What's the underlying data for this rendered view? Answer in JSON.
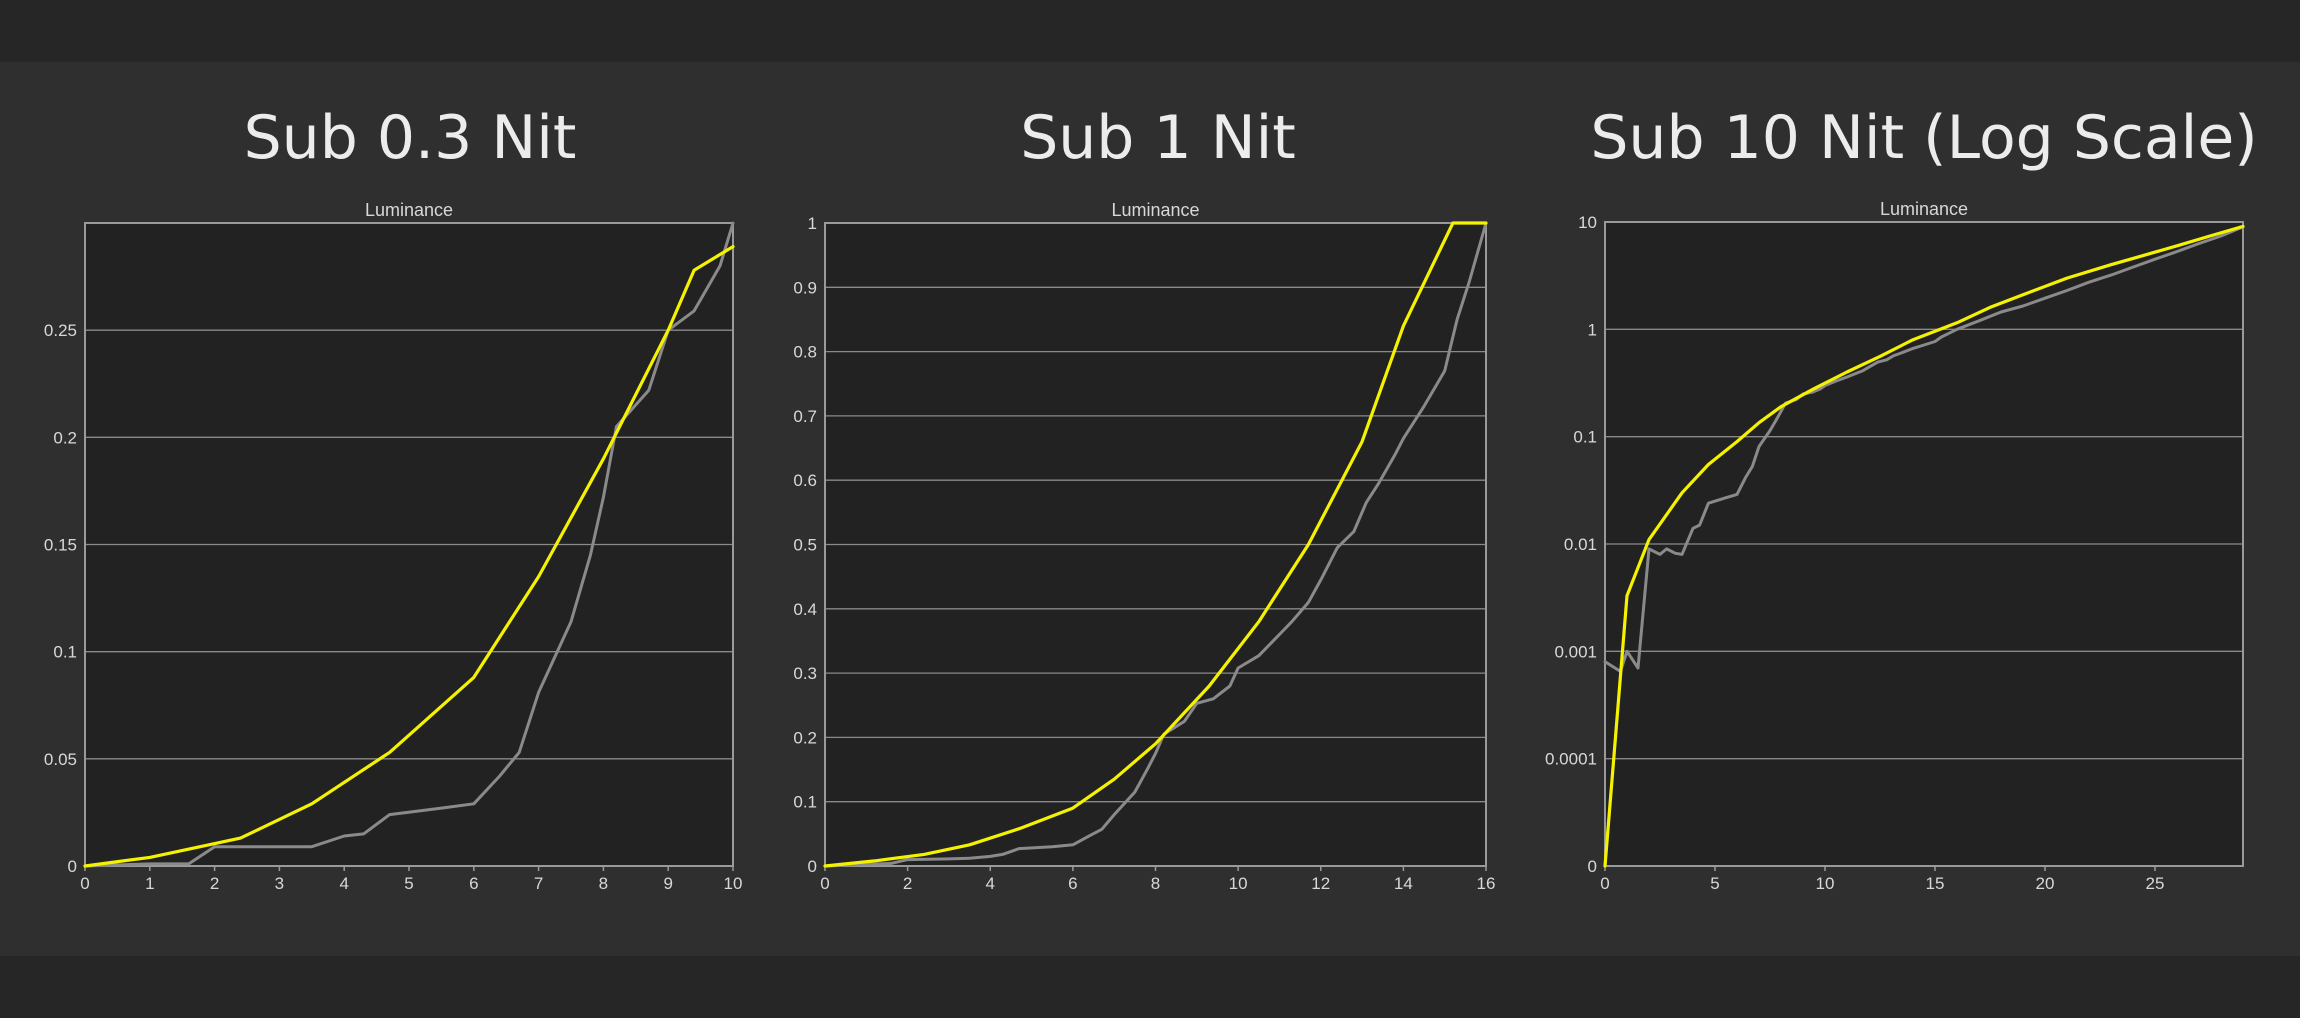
{
  "colors": {
    "background": "#2f2f2f",
    "plot_area": "#222222",
    "grid": "#8a8a8a",
    "frame": "#9a9a9a",
    "text": "#d8d8d8",
    "yellow_series": "#f5f200",
    "gray_series": "#8a8a8a"
  },
  "chart_data": [
    {
      "type": "line",
      "title": "Sub 0.3 Nit",
      "subtitle": "Luminance",
      "xlim": [
        0,
        10
      ],
      "ylim": [
        0,
        0.3
      ],
      "xticks": [
        "0",
        "1",
        "2",
        "3",
        "4",
        "5",
        "6",
        "7",
        "8",
        "9",
        "10"
      ],
      "yticks": [
        "0",
        "0.05",
        "0.1",
        "0.15",
        "0.2",
        "0.25"
      ],
      "grid": true,
      "series": [
        {
          "color": "#f5f200",
          "x": [
            0,
            1,
            2.4,
            3.5,
            4.7,
            6,
            7,
            8,
            9,
            9.4,
            10
          ],
          "y": [
            0,
            0.004,
            0.013,
            0.029,
            0.053,
            0.088,
            0.135,
            0.19,
            0.25,
            0.278,
            0.289
          ]
        },
        {
          "color": "#8a8a8a",
          "x": [
            0,
            1,
            1.6,
            2,
            2.5,
            3,
            3.5,
            4,
            4.3,
            4.7,
            5.5,
            6,
            6.4,
            6.7,
            7,
            7.5,
            7.8,
            8,
            8.2,
            8.7,
            9,
            9.4,
            9.8,
            10
          ],
          "y": [
            0,
            0.001,
            0.001,
            0.009,
            0.009,
            0.009,
            0.009,
            0.014,
            0.015,
            0.024,
            0.027,
            0.029,
            0.042,
            0.053,
            0.081,
            0.114,
            0.145,
            0.172,
            0.205,
            0.222,
            0.25,
            0.259,
            0.28,
            0.3
          ]
        }
      ]
    },
    {
      "type": "line",
      "title": "Sub 1 Nit",
      "subtitle": "Luminance",
      "xlim": [
        0,
        16
      ],
      "ylim": [
        0,
        1
      ],
      "xticks": [
        "0",
        "2",
        "4",
        "6",
        "8",
        "10",
        "12",
        "14",
        "16"
      ],
      "yticks": [
        "0",
        "0.1",
        "0.2",
        "0.3",
        "0.4",
        "0.5",
        "0.6",
        "0.7",
        "0.8",
        "0.9",
        "1"
      ],
      "grid": true,
      "series": [
        {
          "color": "#f5f200",
          "x": [
            0,
            1.2,
            2.4,
            3.5,
            4.7,
            6,
            7,
            8,
            9.3,
            10.5,
            11.7,
            13,
            14,
            15.2,
            16
          ],
          "y": [
            0,
            0.008,
            0.018,
            0.033,
            0.058,
            0.09,
            0.135,
            0.19,
            0.28,
            0.38,
            0.5,
            0.66,
            0.84,
            1,
            1
          ]
        },
        {
          "color": "#8a8a8a",
          "x": [
            0,
            1.6,
            2,
            3,
            3.5,
            4,
            4.3,
            4.7,
            5.5,
            6,
            6.4,
            6.7,
            7,
            7.5,
            7.8,
            8,
            8.2,
            8.7,
            9,
            9.4,
            9.8,
            10,
            10.5,
            11,
            11.3,
            11.7,
            12,
            12.4,
            12.8,
            13.1,
            13.4,
            13.8,
            14,
            14.5,
            15,
            15.3,
            15.6,
            16
          ],
          "y": [
            0,
            0.004,
            0.01,
            0.011,
            0.012,
            0.015,
            0.018,
            0.027,
            0.03,
            0.033,
            0.047,
            0.057,
            0.08,
            0.115,
            0.15,
            0.175,
            0.205,
            0.225,
            0.253,
            0.26,
            0.28,
            0.308,
            0.327,
            0.36,
            0.38,
            0.41,
            0.445,
            0.495,
            0.52,
            0.565,
            0.595,
            0.64,
            0.665,
            0.715,
            0.77,
            0.85,
            0.91,
            1
          ]
        }
      ]
    },
    {
      "type": "line",
      "title": "Sub 10 Nit (Log Scale)",
      "subtitle": "Luminance",
      "xlim": [
        0,
        29
      ],
      "ylim": [
        0,
        10
      ],
      "yscale": "log",
      "xticks": [
        "0",
        "5",
        "10",
        "15",
        "20",
        "25"
      ],
      "yticks": [
        "0",
        "0.0001",
        "0.001",
        "0.01",
        "0.1",
        "1",
        "10"
      ],
      "grid": true,
      "series": [
        {
          "color": "#f5f200",
          "x": [
            0,
            1,
            2,
            3.5,
            4.7,
            6,
            7,
            8,
            9.5,
            11,
            12.5,
            14,
            16,
            17.5,
            19,
            21,
            23,
            24.5,
            26,
            27.5,
            29
          ],
          "y": [
            1e-05,
            0.0033,
            0.011,
            0.03,
            0.055,
            0.09,
            0.135,
            0.19,
            0.28,
            0.4,
            0.56,
            0.8,
            1.15,
            1.6,
            2.1,
            3,
            4,
            4.9,
            6,
            7.4,
            9.1
          ]
        },
        {
          "color": "#8a8a8a",
          "x": [
            0,
            0.7,
            1,
            1.5,
            2,
            2.5,
            2.8,
            3.2,
            3.5,
            4,
            4.3,
            4.7,
            5.5,
            6,
            6.4,
            6.7,
            7,
            7.5,
            7.8,
            8,
            8.2,
            8.7,
            9,
            9.4,
            9.8,
            10,
            10.5,
            11,
            11.3,
            11.7,
            12,
            12.4,
            12.8,
            13.1,
            13.4,
            13.8,
            14,
            14.5,
            15,
            15.3,
            15.6,
            16,
            17,
            18,
            19,
            20,
            21,
            22,
            23,
            24,
            25,
            26,
            27,
            28,
            29
          ],
          "y": [
            0.0008,
            0.00065,
            0.001,
            0.0007,
            0.009,
            0.008,
            0.009,
            0.0082,
            0.008,
            0.014,
            0.015,
            0.024,
            0.027,
            0.029,
            0.042,
            0.053,
            0.081,
            0.114,
            0.145,
            0.172,
            0.205,
            0.222,
            0.25,
            0.259,
            0.28,
            0.3,
            0.33,
            0.36,
            0.38,
            0.41,
            0.445,
            0.495,
            0.52,
            0.565,
            0.595,
            0.64,
            0.665,
            0.715,
            0.77,
            0.85,
            0.91,
            1,
            1.2,
            1.45,
            1.65,
            1.95,
            2.3,
            2.75,
            3.2,
            3.8,
            4.5,
            5.3,
            6.3,
            7.4,
            9
          ]
        }
      ]
    }
  ]
}
